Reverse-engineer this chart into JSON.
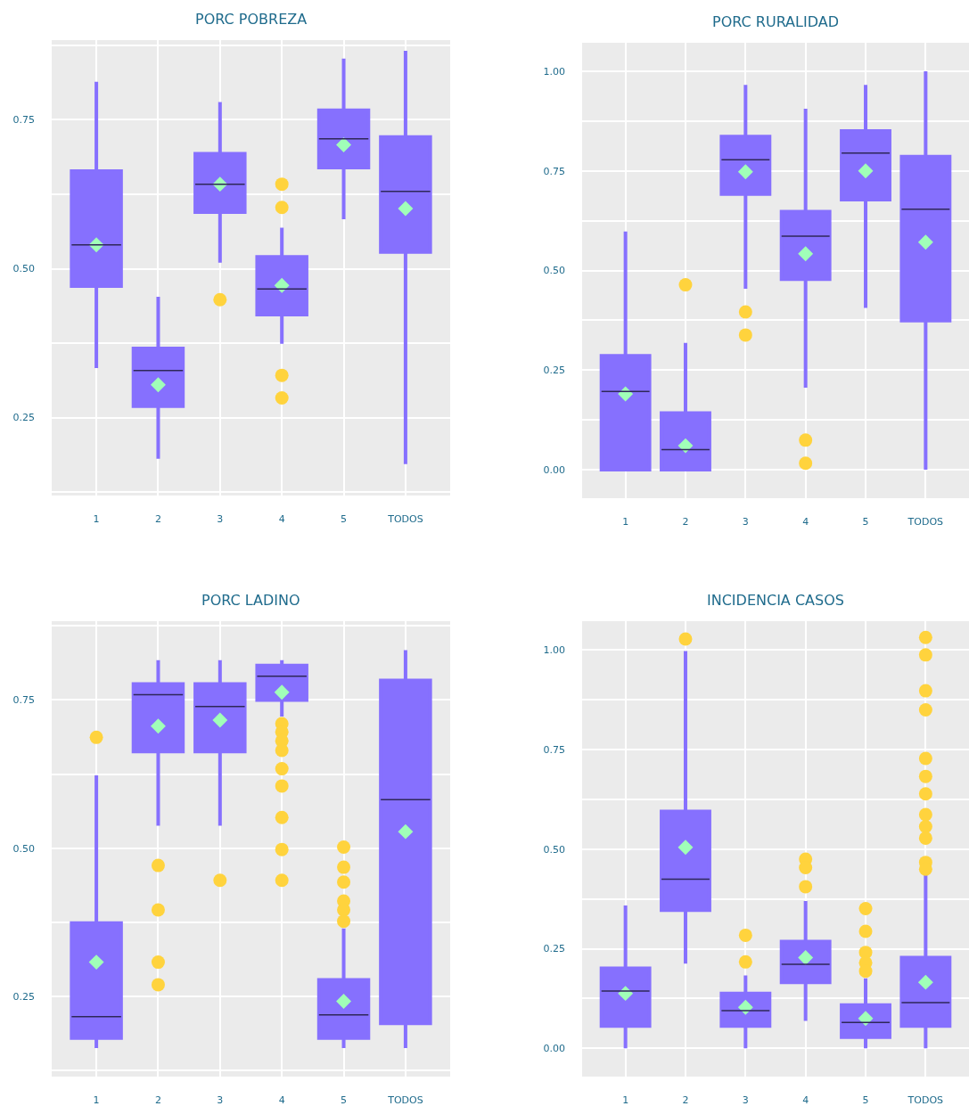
{
  "chart_data": [
    {
      "type": "box",
      "title": "PORC POBREZA",
      "categories": [
        "1",
        "2",
        "3",
        "4",
        "5",
        "TODOS"
      ],
      "ylim": [
        0.119,
        0.884
      ],
      "yticks": [
        {
          "value": 0.125,
          "label": null
        },
        {
          "value": 0.25,
          "label": "0.25"
        },
        {
          "value": 0.375,
          "label": null
        },
        {
          "value": 0.5,
          "label": "0.50"
        },
        {
          "value": 0.625,
          "label": null
        },
        {
          "value": 0.75,
          "label": "0.75"
        },
        {
          "value": 0.875,
          "label": null
        }
      ],
      "grid": true,
      "series": [
        {
          "color": "#8670fe",
          "boxes": [
            {
              "low": 0.333,
              "q1": 0.471,
              "median": 0.54,
              "q3": 0.664,
              "high": 0.814
            },
            {
              "low": 0.181,
              "q1": 0.269,
              "median": 0.329,
              "q3": 0.366,
              "high": 0.453
            },
            {
              "low": 0.51,
              "q1": 0.595,
              "median": 0.642,
              "q3": 0.693,
              "high": 0.78
            },
            {
              "low": 0.374,
              "q1": 0.423,
              "median": 0.466,
              "q3": 0.52,
              "high": 0.569
            },
            {
              "low": 0.583,
              "q1": 0.67,
              "median": 0.718,
              "q3": 0.766,
              "high": 0.853
            },
            {
              "low": 0.172,
              "q1": 0.528,
              "median": 0.63,
              "q3": 0.721,
              "high": 0.866
            }
          ]
        },
        {
          "type": "scatter",
          "marker": "circle",
          "color": "#ffd33d",
          "x": [
            "3",
            "4",
            "4",
            "4",
            "4"
          ],
          "values": [
            0.448,
            0.642,
            0.603,
            0.321,
            0.283
          ]
        },
        {
          "type": "scatter",
          "marker": "diamond",
          "color": "#a0ffb8",
          "x": [
            "1",
            "2",
            "3",
            "4",
            "5",
            "TODOS"
          ],
          "values": [
            0.54,
            0.305,
            0.642,
            0.472,
            0.708,
            0.601
          ]
        }
      ]
    },
    {
      "type": "box",
      "title": "PORC RURALIDAD",
      "categories": [
        "1",
        "2",
        "3",
        "4",
        "5",
        "TODOS"
      ],
      "ylim": [
        -0.072,
        1.072
      ],
      "yticks": [
        {
          "value": 0,
          "label": "0.00"
        },
        {
          "value": 0.125,
          "label": null
        },
        {
          "value": 0.25,
          "label": "0.25"
        },
        {
          "value": 0.375,
          "label": null
        },
        {
          "value": 0.5,
          "label": "0.50"
        },
        {
          "value": 0.625,
          "label": null
        },
        {
          "value": 0.75,
          "label": "0.75"
        },
        {
          "value": 0.875,
          "label": null
        },
        {
          "value": 1,
          "label": "1.00"
        }
      ],
      "grid": true,
      "series": [
        {
          "color": "#8670fe",
          "boxes": [
            {
              "low": 0,
              "q1": 0,
              "median": 0.196,
              "q3": 0.286,
              "high": 0.598
            },
            {
              "low": 0,
              "q1": 0,
              "median": 0.05,
              "q3": 0.142,
              "high": 0.318
            },
            {
              "low": 0.454,
              "q1": 0.692,
              "median": 0.778,
              "q3": 0.836,
              "high": 0.966
            },
            {
              "low": 0.206,
              "q1": 0.478,
              "median": 0.586,
              "q3": 0.648,
              "high": 0.906
            },
            {
              "low": 0.406,
              "q1": 0.678,
              "median": 0.795,
              "q3": 0.85,
              "high": 0.966
            },
            {
              "low": 0,
              "q1": 0.374,
              "median": 0.654,
              "q3": 0.786,
              "high": 1.0
            }
          ]
        },
        {
          "type": "scatter",
          "marker": "circle",
          "color": "#ffd33d",
          "x": [
            "2",
            "3",
            "3",
            "4",
            "4"
          ],
          "values": [
            0.464,
            0.396,
            0.338,
            0.074,
            0.016
          ]
        },
        {
          "type": "scatter",
          "marker": "diamond",
          "color": "#a0ffb8",
          "x": [
            "1",
            "2",
            "3",
            "4",
            "5",
            "TODOS"
          ],
          "values": [
            0.19,
            0.06,
            0.748,
            0.542,
            0.75,
            0.571
          ]
        }
      ]
    },
    {
      "type": "box",
      "title": "PORC LADINO",
      "categories": [
        "1",
        "2",
        "3",
        "4",
        "5",
        "TODOS"
      ],
      "ylim": [
        0.115,
        0.883
      ],
      "yticks": [
        {
          "value": 0.125,
          "label": null
        },
        {
          "value": 0.25,
          "label": "0.25"
        },
        {
          "value": 0.375,
          "label": null
        },
        {
          "value": 0.5,
          "label": "0.50"
        },
        {
          "value": 0.625,
          "label": null
        },
        {
          "value": 0.75,
          "label": "0.75"
        },
        {
          "value": 0.875,
          "label": null
        }
      ],
      "grid": true,
      "series": [
        {
          "color": "#8670fe",
          "boxes": [
            {
              "low": 0.163,
              "q1": 0.18,
              "median": 0.216,
              "q3": 0.374,
              "high": 0.623
            },
            {
              "low": 0.538,
              "q1": 0.663,
              "median": 0.759,
              "q3": 0.777,
              "high": 0.817
            },
            {
              "low": 0.538,
              "q1": 0.663,
              "median": 0.739,
              "q3": 0.777,
              "high": 0.817
            },
            {
              "low": 0.722,
              "q1": 0.75,
              "median": 0.79,
              "q3": 0.808,
              "high": 0.817
            },
            {
              "low": 0.163,
              "q1": 0.18,
              "median": 0.219,
              "q3": 0.278,
              "high": 0.365
            },
            {
              "low": 0.163,
              "q1": 0.205,
              "median": 0.582,
              "q3": 0.783,
              "high": 0.834
            }
          ]
        },
        {
          "type": "scatter",
          "marker": "circle",
          "color": "#ffd33d",
          "x": [
            "1",
            "2",
            "2",
            "2",
            "2",
            "3",
            "4",
            "4",
            "4",
            "4",
            "4",
            "4",
            "4",
            "4",
            "4",
            "5",
            "5",
            "5",
            "5",
            "5",
            "5"
          ],
          "values": [
            0.687,
            0.471,
            0.396,
            0.308,
            0.27,
            0.446,
            0.71,
            0.696,
            0.681,
            0.665,
            0.634,
            0.605,
            0.552,
            0.498,
            0.446,
            0.502,
            0.468,
            0.443,
            0.411,
            0.396,
            0.377
          ]
        },
        {
          "type": "scatter",
          "marker": "diamond",
          "color": "#a0ffb8",
          "x": [
            "1",
            "2",
            "3",
            "4",
            "5",
            "TODOS"
          ],
          "values": [
            0.308,
            0.706,
            0.716,
            0.763,
            0.242,
            0.528
          ]
        }
      ]
    },
    {
      "type": "box",
      "title": "INCIDENCIA CASOS",
      "categories": [
        "1",
        "2",
        "3",
        "4",
        "5",
        "TODOS"
      ],
      "ylim": [
        -0.071,
        1.073
      ],
      "yticks": [
        {
          "value": 0,
          "label": "0.00"
        },
        {
          "value": 0.125,
          "label": null
        },
        {
          "value": 0.25,
          "label": "0.25"
        },
        {
          "value": 0.375,
          "label": null
        },
        {
          "value": 0.5,
          "label": "0.50"
        },
        {
          "value": 0.625,
          "label": null
        },
        {
          "value": 0.75,
          "label": "0.75"
        },
        {
          "value": 0.875,
          "label": null
        },
        {
          "value": 1,
          "label": "1.00"
        }
      ],
      "grid": true,
      "series": [
        {
          "color": "#8670fe",
          "boxes": [
            {
              "low": 0,
              "q1": 0.056,
              "median": 0.144,
              "q3": 0.201,
              "high": 0.359
            },
            {
              "low": 0.213,
              "q1": 0.347,
              "median": 0.425,
              "q3": 0.595,
              "high": 0.998
            },
            {
              "low": 0,
              "q1": 0.056,
              "median": 0.095,
              "q3": 0.138,
              "high": 0.183
            },
            {
              "low": 0.069,
              "q1": 0.166,
              "median": 0.211,
              "q3": 0.268,
              "high": 0.37
            },
            {
              "low": 0,
              "q1": 0.028,
              "median": 0.065,
              "q3": 0.109,
              "high": 0.176
            },
            {
              "low": 0,
              "q1": 0.056,
              "median": 0.115,
              "q3": 0.228,
              "high": 0.435
            }
          ]
        },
        {
          "type": "scatter",
          "marker": "circle",
          "color": "#ffd33d",
          "x": [
            "2",
            "3",
            "3",
            "4",
            "4",
            "4",
            "5",
            "5",
            "5",
            "5",
            "5",
            "TODOS",
            "TODOS",
            "TODOS",
            "TODOS",
            "TODOS",
            "TODOS",
            "TODOS",
            "TODOS",
            "TODOS",
            "TODOS",
            "TODOS",
            "TODOS"
          ],
          "values": [
            1.028,
            0.284,
            0.217,
            0.475,
            0.454,
            0.406,
            0.351,
            0.294,
            0.241,
            0.215,
            0.194,
            1.032,
            0.988,
            0.898,
            0.85,
            0.728,
            0.683,
            0.639,
            0.587,
            0.557,
            0.528,
            0.467,
            0.45
          ]
        },
        {
          "type": "scatter",
          "marker": "diamond",
          "color": "#a0ffb8",
          "x": [
            "1",
            "2",
            "3",
            "4",
            "5",
            "TODOS"
          ],
          "values": [
            0.138,
            0.505,
            0.103,
            0.228,
            0.075,
            0.166
          ]
        }
      ]
    }
  ]
}
